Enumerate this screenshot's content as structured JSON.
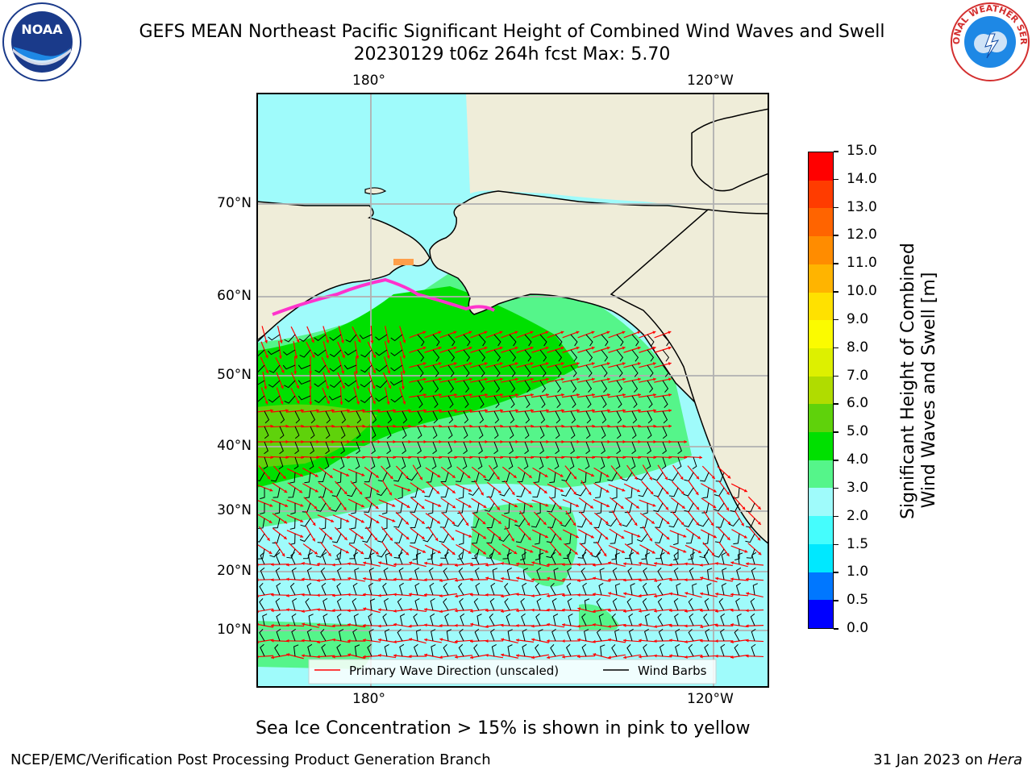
{
  "header": {
    "title_line1": "GEFS MEAN Northeast Pacific Significant Height of Combined Wind Waves and Swell",
    "title_line2": "20230129 t06z 264h fcst   Max: 5.70",
    "logo_left_text": "NOAA",
    "logo_right_text": "NATIONAL WEATHER SERVICE"
  },
  "map": {
    "lon_labels_top": [
      "180°",
      "120°W"
    ],
    "lon_labels_bottom": [
      "180°",
      "120°W"
    ],
    "lat_labels": [
      "70°N",
      "60°N",
      "50°N",
      "40°N",
      "30°N",
      "20°N",
      "10°N"
    ],
    "legend": {
      "wave_direction": "Primary Wave Direction (unscaled)",
      "wind_barbs": "Wind Barbs"
    },
    "colors": {
      "land": "#efedd9",
      "ocean_low": "#9ffbfb",
      "wave_3_4": "#55f58a",
      "wave_4_5": "#00e000",
      "wave_5_6": "#5fd20b",
      "arrow": "#ff0000",
      "ice": "#ff33cc"
    }
  },
  "colorbar": {
    "ticks": [
      "15.0",
      "14.0",
      "13.0",
      "12.0",
      "11.0",
      "10.0",
      "9.0",
      "8.0",
      "7.0",
      "6.0",
      "5.0",
      "4.0",
      "3.0",
      "2.0",
      "1.5",
      "1.0",
      "0.5",
      "0.0"
    ],
    "colors": [
      "#0000ff",
      "#0077ff",
      "#00e8ff",
      "#45fdfd",
      "#9ffbfb",
      "#55f58a",
      "#00e000",
      "#5fd20b",
      "#b0dc00",
      "#ddf000",
      "#fbfb00",
      "#ffe100",
      "#ffb400",
      "#ff8c00",
      "#ff6400",
      "#ff3c00",
      "#ff0000"
    ],
    "label_line1": "Significant Height of Combined",
    "label_line2": "Wind Waves and Swell [m]"
  },
  "footer": {
    "note": "Sea Ice Concentration > 15% is shown in pink to yellow",
    "credit": "NCEP/EMC/Verification Post Processing Product Generation Branch",
    "date": "31 Jan 2023 on",
    "host": "Hera"
  }
}
